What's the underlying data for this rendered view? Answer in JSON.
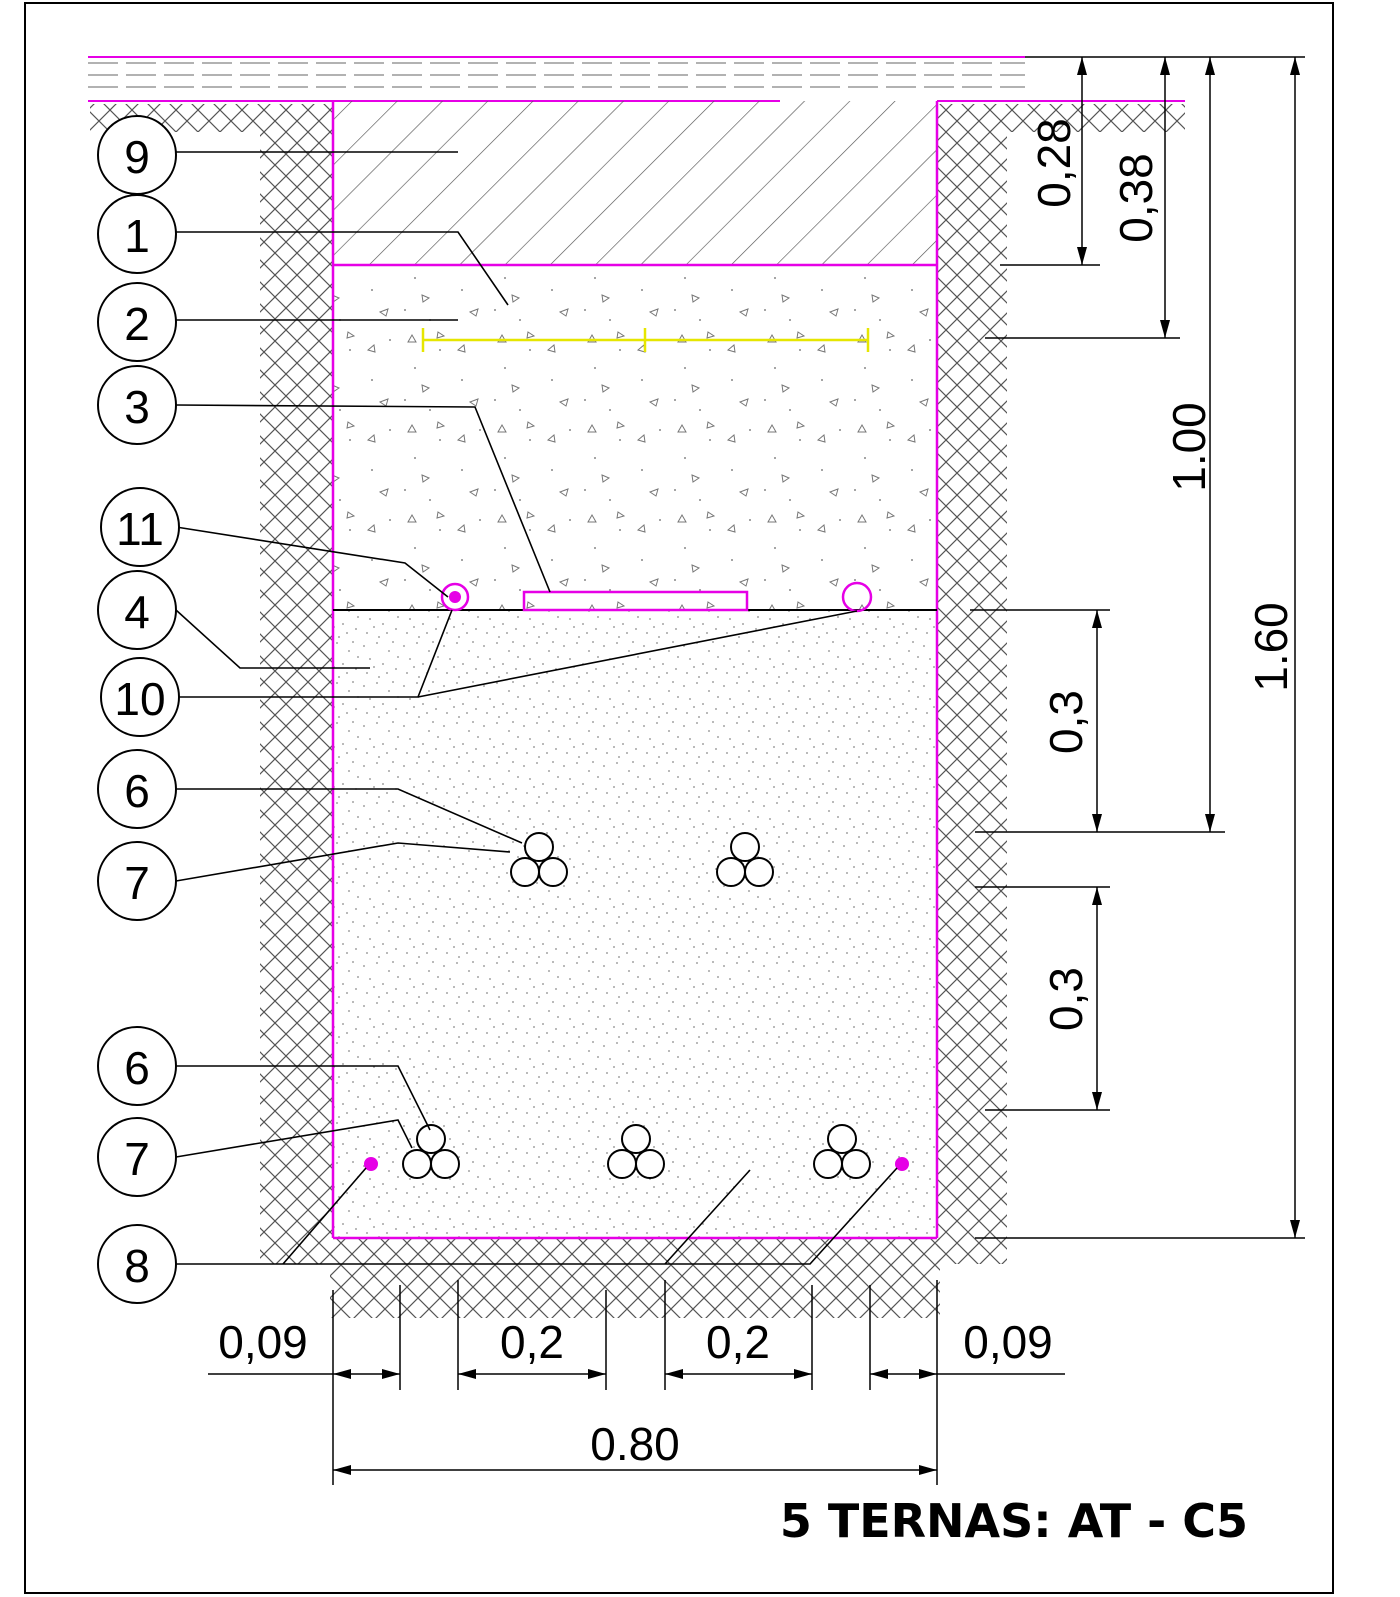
{
  "drawing": {
    "title": "5 TERNAS: AT - C5",
    "colors": {
      "outline": "#e600e6",
      "warning_tape": "#e6e600",
      "line": "#000000",
      "hatch": "#555555",
      "sand_dots": "#777777"
    }
  },
  "callouts": {
    "c9": "9",
    "c1": "1",
    "c2": "2",
    "c3": "3",
    "c11": "11",
    "c4": "4",
    "c10": "10",
    "c6a": "6",
    "c7a": "7",
    "c6b": "6",
    "c7b": "7",
    "c8": "8"
  },
  "dimensions": {
    "d028": "0,28",
    "d038": "0,38",
    "d100": "1.00",
    "d160": "1.60",
    "d03a": "0,3",
    "d03b": "0,3",
    "w009a": "0,09",
    "w02a": "0,2",
    "w02b": "0,2",
    "w009b": "0,09",
    "w080": "0.80"
  }
}
